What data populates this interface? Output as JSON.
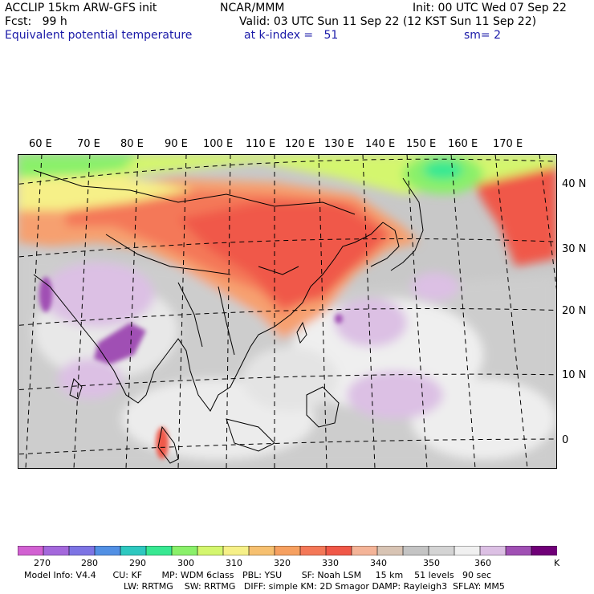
{
  "header": {
    "model": "ACCLIP 15km ARW-GFS init",
    "org": "NCAR/MMM",
    "init": "Init: 00 UTC Wed 07 Sep 22",
    "fcst": "Fcst:   99 h",
    "valid": "Valid: 03 UTC Sun 11 Sep 22 (12 KST Sun 11 Sep 22)",
    "field": "Equivalent potential temperature",
    "level": "at k-index =   51",
    "smooth": "sm= 2"
  },
  "lon_labels": [
    "60 E",
    "70 E",
    "80 E",
    "90 E",
    "100 E",
    "110 E",
    "120 E",
    "130 E",
    "140 E",
    "150 E",
    "160 E",
    "170 E"
  ],
  "lat_labels": [
    "40 N",
    "30 N",
    "20 N",
    "10 N",
    "0"
  ],
  "colorbar": {
    "ticks": [
      "270",
      "280",
      "290",
      "300",
      "310",
      "320",
      "330",
      "340",
      "350",
      "360"
    ],
    "unit": "K",
    "colors": [
      "#d261d2",
      "#a468dc",
      "#7d74e4",
      "#5290e4",
      "#2ec8c0",
      "#38e892",
      "#8af06a",
      "#d4f66e",
      "#f6f088",
      "#f6c070",
      "#f6a060",
      "#f47858",
      "#f05848",
      "#f4b498",
      "#d8c4b4",
      "#c4c4c4",
      "#d4d4d4",
      "#f0f0f0",
      "#dcc0e4",
      "#a050b4",
      "#700078"
    ]
  },
  "footer": {
    "line1": "Model Info: V4.4      CU: KF       MP: WDM 6class   PBL: YSU       SF: Noah LSM     15 km    51 levels   90 sec",
    "line2": "LW: RRTMG    SW: RRTMG   DIFF: simple KM: 2D Smagor DAMP: Rayleigh3  SFLAY: MM5"
  }
}
